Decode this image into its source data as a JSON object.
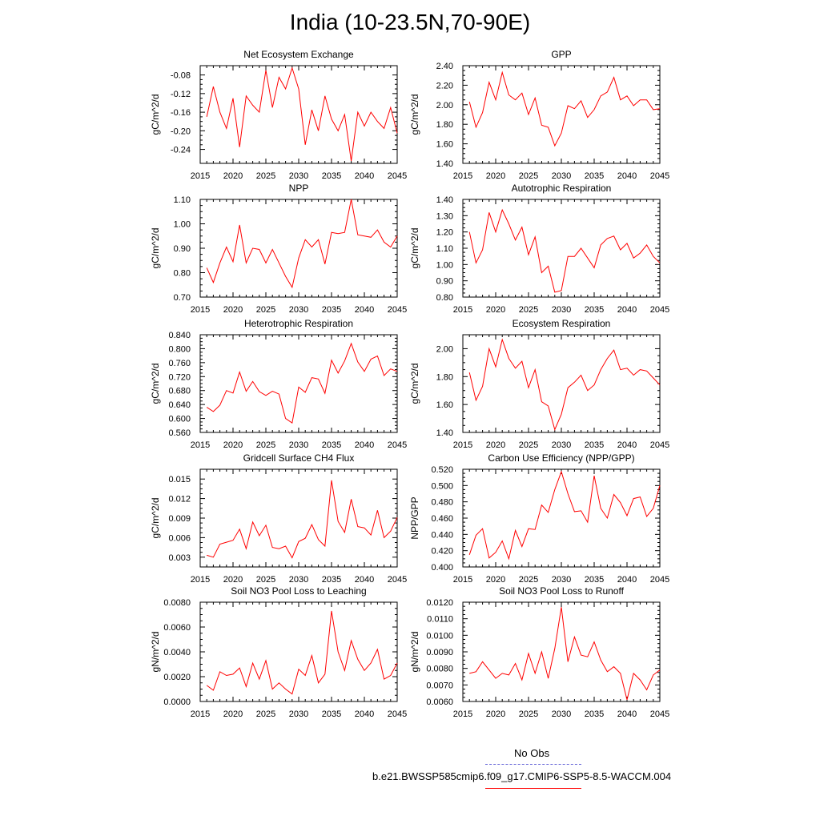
{
  "title": "India (10-23.5N,70-90E)",
  "legend": {
    "obs_label": "No Obs",
    "obs_color": "#6a6ad8",
    "model_label": "b.e21.BWSSP585cmip6.f09_g17.CMIP6-SSP5-8.5-WACCM.004",
    "model_color": "#ff0000"
  },
  "chart_data": [
    {
      "type": "line",
      "title": "Net Ecosystem Exchange",
      "ylabel": "gC/m^2/d",
      "xlim": [
        2015,
        2045
      ],
      "xticks": [
        2015,
        2020,
        2025,
        2030,
        2035,
        2040,
        2045
      ],
      "ylim": [
        -0.27,
        -0.06
      ],
      "yticks": [
        "-0.24",
        "-0.20",
        "-0.16",
        "-0.12",
        "-0.08"
      ],
      "x": [
        2016,
        2017,
        2018,
        2019,
        2020,
        2021,
        2022,
        2023,
        2024,
        2025,
        2026,
        2027,
        2028,
        2029,
        2030,
        2031,
        2032,
        2033,
        2034,
        2035,
        2036,
        2037,
        2038,
        2039,
        2040,
        2041,
        2042,
        2043,
        2044,
        2045
      ],
      "series": [
        {
          "color": "#ff0000",
          "values": [
            -0.17,
            -0.105,
            -0.16,
            -0.195,
            -0.13,
            -0.235,
            -0.125,
            -0.145,
            -0.16,
            -0.07,
            -0.15,
            -0.085,
            -0.11,
            -0.065,
            -0.11,
            -0.23,
            -0.155,
            -0.2,
            -0.125,
            -0.175,
            -0.2,
            -0.165,
            -0.265,
            -0.16,
            -0.19,
            -0.16,
            -0.18,
            -0.195,
            -0.15,
            -0.205
          ]
        }
      ]
    },
    {
      "type": "line",
      "title": "GPP",
      "ylabel": "gC/m^2/d",
      "xlim": [
        2015,
        2045
      ],
      "xticks": [
        2015,
        2020,
        2025,
        2030,
        2035,
        2040,
        2045
      ],
      "ylim": [
        1.4,
        2.4
      ],
      "yticks": [
        "1.40",
        "1.60",
        "1.80",
        "2.00",
        "2.20",
        "2.40"
      ],
      "x": [
        2016,
        2017,
        2018,
        2019,
        2020,
        2021,
        2022,
        2023,
        2024,
        2025,
        2026,
        2027,
        2028,
        2029,
        2030,
        2031,
        2032,
        2033,
        2034,
        2035,
        2036,
        2037,
        2038,
        2039,
        2040,
        2041,
        2042,
        2043,
        2044,
        2045
      ],
      "series": [
        {
          "color": "#ff0000",
          "values": [
            2.03,
            1.77,
            1.92,
            2.23,
            2.05,
            2.33,
            2.1,
            2.05,
            2.12,
            1.9,
            2.07,
            1.79,
            1.77,
            1.58,
            1.71,
            1.99,
            1.96,
            2.04,
            1.87,
            1.95,
            2.09,
            2.13,
            2.28,
            2.05,
            2.09,
            1.99,
            2.05,
            2.05,
            1.95,
            1.96
          ]
        }
      ]
    },
    {
      "type": "line",
      "title": "NPP",
      "ylabel": "gC/m^2/d",
      "xlim": [
        2015,
        2045
      ],
      "xticks": [
        2015,
        2020,
        2025,
        2030,
        2035,
        2040,
        2045
      ],
      "ylim": [
        0.7,
        1.1
      ],
      "yticks": [
        "0.70",
        "0.80",
        "0.90",
        "1.00",
        "1.10"
      ],
      "x": [
        2016,
        2017,
        2018,
        2019,
        2020,
        2021,
        2022,
        2023,
        2024,
        2025,
        2026,
        2027,
        2028,
        2029,
        2030,
        2031,
        2032,
        2033,
        2034,
        2035,
        2036,
        2037,
        2038,
        2039,
        2040,
        2041,
        2042,
        2043,
        2044,
        2045
      ],
      "series": [
        {
          "color": "#ff0000",
          "values": [
            0.82,
            0.76,
            0.84,
            0.905,
            0.845,
            0.995,
            0.84,
            0.9,
            0.895,
            0.84,
            0.895,
            0.84,
            0.785,
            0.74,
            0.86,
            0.935,
            0.905,
            0.935,
            0.835,
            0.965,
            0.96,
            0.965,
            1.1,
            0.955,
            0.95,
            0.945,
            0.975,
            0.925,
            0.905,
            0.95
          ]
        }
      ]
    },
    {
      "type": "line",
      "title": "Autotrophic Respiration",
      "ylabel": "gC/m^2/d",
      "xlim": [
        2015,
        2045
      ],
      "xticks": [
        2015,
        2020,
        2025,
        2030,
        2035,
        2040,
        2045
      ],
      "ylim": [
        0.8,
        1.4
      ],
      "yticks": [
        "0.80",
        "0.90",
        "1.00",
        "1.10",
        "1.20",
        "1.30",
        "1.40"
      ],
      "x": [
        2016,
        2017,
        2018,
        2019,
        2020,
        2021,
        2022,
        2023,
        2024,
        2025,
        2026,
        2027,
        2028,
        2029,
        2030,
        2031,
        2032,
        2033,
        2034,
        2035,
        2036,
        2037,
        2038,
        2039,
        2040,
        2041,
        2042,
        2043,
        2044,
        2045
      ],
      "series": [
        {
          "color": "#ff0000",
          "values": [
            1.2,
            1.01,
            1.09,
            1.32,
            1.2,
            1.335,
            1.25,
            1.15,
            1.23,
            1.06,
            1.17,
            0.95,
            0.99,
            0.83,
            0.84,
            1.05,
            1.05,
            1.1,
            1.04,
            0.98,
            1.12,
            1.16,
            1.175,
            1.09,
            1.13,
            1.04,
            1.07,
            1.12,
            1.05,
            1.01
          ]
        }
      ]
    },
    {
      "type": "line",
      "title": "Heterotrophic Respiration",
      "ylabel": "gC/m^2/d",
      "xlim": [
        2015,
        2045
      ],
      "xticks": [
        2015,
        2020,
        2025,
        2030,
        2035,
        2040,
        2045
      ],
      "ylim": [
        0.56,
        0.84
      ],
      "yticks": [
        "0.560",
        "0.600",
        "0.640",
        "0.680",
        "0.720",
        "0.760",
        "0.800",
        "0.840"
      ],
      "x": [
        2016,
        2017,
        2018,
        2019,
        2020,
        2021,
        2022,
        2023,
        2024,
        2025,
        2026,
        2027,
        2028,
        2029,
        2030,
        2031,
        2032,
        2033,
        2034,
        2035,
        2036,
        2037,
        2038,
        2039,
        2040,
        2041,
        2042,
        2043,
        2044,
        2045
      ],
      "series": [
        {
          "color": "#ff0000",
          "values": [
            0.632,
            0.62,
            0.638,
            0.68,
            0.673,
            0.733,
            0.678,
            0.706,
            0.677,
            0.666,
            0.678,
            0.67,
            0.6,
            0.587,
            0.69,
            0.675,
            0.717,
            0.713,
            0.672,
            0.767,
            0.73,
            0.765,
            0.815,
            0.762,
            0.735,
            0.77,
            0.779,
            0.723,
            0.742,
            0.735
          ]
        }
      ]
    },
    {
      "type": "line",
      "title": "Ecosystem Respiration",
      "ylabel": "gC/m^2/d",
      "xlim": [
        2015,
        2045
      ],
      "xticks": [
        2015,
        2020,
        2025,
        2030,
        2035,
        2040,
        2045
      ],
      "ylim": [
        1.4,
        2.1
      ],
      "yticks": [
        "1.40",
        "1.60",
        "1.80",
        "2.00"
      ],
      "x": [
        2016,
        2017,
        2018,
        2019,
        2020,
        2021,
        2022,
        2023,
        2024,
        2025,
        2026,
        2027,
        2028,
        2029,
        2030,
        2031,
        2032,
        2033,
        2034,
        2035,
        2036,
        2037,
        2038,
        2039,
        2040,
        2041,
        2042,
        2043,
        2044,
        2045
      ],
      "series": [
        {
          "color": "#ff0000",
          "values": [
            1.83,
            1.63,
            1.73,
            2.0,
            1.87,
            2.065,
            1.93,
            1.86,
            1.91,
            1.72,
            1.85,
            1.62,
            1.59,
            1.42,
            1.53,
            1.72,
            1.76,
            1.81,
            1.7,
            1.74,
            1.85,
            1.93,
            1.99,
            1.85,
            1.86,
            1.81,
            1.85,
            1.84,
            1.79,
            1.74
          ]
        }
      ]
    },
    {
      "type": "line",
      "title": "Gridcell Surface CH4 Flux",
      "ylabel": "gC/m^2/d",
      "xlim": [
        2015,
        2045
      ],
      "xticks": [
        2015,
        2020,
        2025,
        2030,
        2035,
        2040,
        2045
      ],
      "ylim": [
        0.0015,
        0.0165
      ],
      "yticks": [
        "0.003",
        "0.006",
        "0.009",
        "0.012",
        "0.015"
      ],
      "x": [
        2016,
        2017,
        2018,
        2019,
        2020,
        2021,
        2022,
        2023,
        2024,
        2025,
        2026,
        2027,
        2028,
        2029,
        2030,
        2031,
        2032,
        2033,
        2034,
        2035,
        2036,
        2037,
        2038,
        2039,
        2040,
        2041,
        2042,
        2043,
        2044,
        2045
      ],
      "series": [
        {
          "color": "#ff0000",
          "values": [
            0.0033,
            0.003,
            0.005,
            0.0053,
            0.0056,
            0.0073,
            0.0043,
            0.0084,
            0.0063,
            0.0079,
            0.0045,
            0.0043,
            0.0047,
            0.0029,
            0.0054,
            0.0059,
            0.008,
            0.0057,
            0.0047,
            0.0148,
            0.0085,
            0.0068,
            0.0119,
            0.0077,
            0.0075,
            0.0064,
            0.0102,
            0.006,
            0.007,
            0.0091
          ]
        }
      ]
    },
    {
      "type": "line",
      "title": "Carbon Use Efficiency (NPP/GPP)",
      "ylabel": "NPP/GPP",
      "xlim": [
        2015,
        2045
      ],
      "xticks": [
        2015,
        2020,
        2025,
        2030,
        2035,
        2040,
        2045
      ],
      "ylim": [
        0.4,
        0.52
      ],
      "yticks": [
        "0.400",
        "0.420",
        "0.440",
        "0.460",
        "0.480",
        "0.500",
        "0.520"
      ],
      "x": [
        2016,
        2017,
        2018,
        2019,
        2020,
        2021,
        2022,
        2023,
        2024,
        2025,
        2026,
        2027,
        2028,
        2029,
        2030,
        2031,
        2032,
        2033,
        2034,
        2035,
        2036,
        2037,
        2038,
        2039,
        2040,
        2041,
        2042,
        2043,
        2044,
        2045
      ],
      "series": [
        {
          "color": "#ff0000",
          "values": [
            0.415,
            0.439,
            0.447,
            0.411,
            0.418,
            0.432,
            0.41,
            0.445,
            0.425,
            0.447,
            0.446,
            0.476,
            0.467,
            0.495,
            0.517,
            0.49,
            0.468,
            0.469,
            0.455,
            0.512,
            0.472,
            0.46,
            0.489,
            0.479,
            0.463,
            0.484,
            0.486,
            0.462,
            0.472,
            0.5
          ]
        }
      ]
    },
    {
      "type": "line",
      "title": "Soil NO3 Pool Loss to Leaching",
      "ylabel": "gN/m^2/d",
      "xlim": [
        2015,
        2045
      ],
      "xticks": [
        2015,
        2020,
        2025,
        2030,
        2035,
        2040,
        2045
      ],
      "ylim": [
        0,
        0.008
      ],
      "yticks": [
        "0.0000",
        "0.0020",
        "0.0040",
        "0.0060",
        "0.0080"
      ],
      "x": [
        2016,
        2017,
        2018,
        2019,
        2020,
        2021,
        2022,
        2023,
        2024,
        2025,
        2026,
        2027,
        2028,
        2029,
        2030,
        2031,
        2032,
        2033,
        2034,
        2035,
        2036,
        2037,
        2038,
        2039,
        2040,
        2041,
        2042,
        2043,
        2044,
        2045
      ],
      "series": [
        {
          "color": "#ff0000",
          "values": [
            0.0013,
            0.0009,
            0.0024,
            0.0021,
            0.0022,
            0.0027,
            0.0012,
            0.0031,
            0.0018,
            0.0033,
            0.001,
            0.0015,
            0.001,
            0.0006,
            0.0026,
            0.0021,
            0.0037,
            0.0015,
            0.0022,
            0.0073,
            0.004,
            0.0025,
            0.0049,
            0.0034,
            0.0025,
            0.0031,
            0.0042,
            0.0018,
            0.0021,
            0.0031
          ]
        }
      ]
    },
    {
      "type": "line",
      "title": "Soil NO3 Pool Loss to Runoff",
      "ylabel": "gN/m^2/d",
      "xlim": [
        2015,
        2045
      ],
      "xticks": [
        2015,
        2020,
        2025,
        2030,
        2035,
        2040,
        2045
      ],
      "ylim": [
        0.006,
        0.012
      ],
      "yticks": [
        "0.0060",
        "0.0070",
        "0.0080",
        "0.0090",
        "0.0100",
        "0.0110",
        "0.0120"
      ],
      "x": [
        2016,
        2017,
        2018,
        2019,
        2020,
        2021,
        2022,
        2023,
        2024,
        2025,
        2026,
        2027,
        2028,
        2029,
        2030,
        2031,
        2032,
        2033,
        2034,
        2035,
        2036,
        2037,
        2038,
        2039,
        2040,
        2041,
        2042,
        2043,
        2044,
        2045
      ],
      "series": [
        {
          "color": "#ff0000",
          "values": [
            0.0077,
            0.0078,
            0.0084,
            0.0079,
            0.0074,
            0.0077,
            0.0076,
            0.0083,
            0.0073,
            0.0089,
            0.0077,
            0.009,
            0.0074,
            0.0092,
            0.0117,
            0.0084,
            0.0099,
            0.0088,
            0.0087,
            0.0096,
            0.0085,
            0.0078,
            0.0081,
            0.0077,
            0.0061,
            0.0077,
            0.0073,
            0.0067,
            0.0076,
            0.0079
          ]
        }
      ]
    }
  ]
}
